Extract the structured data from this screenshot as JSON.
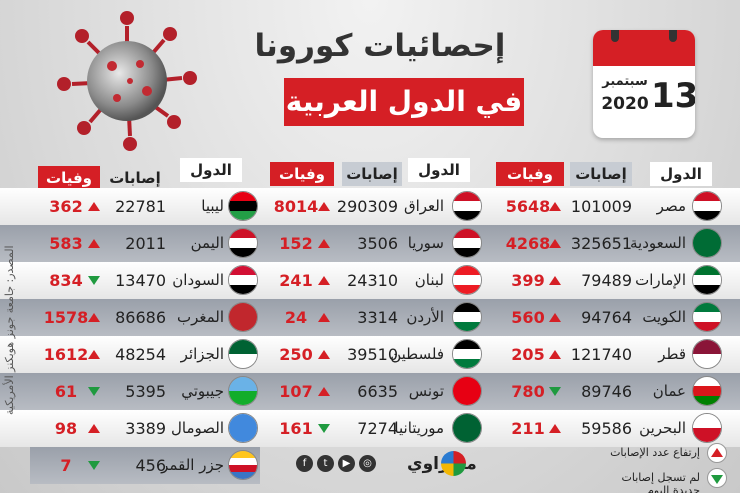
{
  "title_line1": "إحصائيات كورونا",
  "title_line2": "في الدول العربية",
  "calendar": {
    "day": "13",
    "month": "سبتمبر",
    "year": "2020"
  },
  "headers": {
    "country": "الدول",
    "cases": "إصابات",
    "deaths": "وفيات"
  },
  "colors": {
    "accent_red": "#d51f25",
    "down_green": "#1f9a3f"
  },
  "col_right": [
    {
      "country": "مصر",
      "cases": "101009",
      "deaths": "5648",
      "trend": "up"
    },
    {
      "country": "السعودية",
      "cases": "325651",
      "deaths": "4268",
      "trend": "up"
    },
    {
      "country": "الإمارات",
      "cases": "79489",
      "deaths": "399",
      "trend": "up"
    },
    {
      "country": "الكويت",
      "cases": "94764",
      "deaths": "560",
      "trend": "up"
    },
    {
      "country": "قطر",
      "cases": "121740",
      "deaths": "205",
      "trend": "up"
    },
    {
      "country": "عمان",
      "cases": "89746",
      "deaths": "780",
      "trend": "down"
    },
    {
      "country": "البحرين",
      "cases": "59586",
      "deaths": "211",
      "trend": "up"
    }
  ],
  "col_middle": [
    {
      "country": "العراق",
      "cases": "290309",
      "deaths": "8014",
      "trend": "up"
    },
    {
      "country": "سوريا",
      "cases": "3506",
      "deaths": "152",
      "trend": "up"
    },
    {
      "country": "لبنان",
      "cases": "24310",
      "deaths": "241",
      "trend": "up"
    },
    {
      "country": "الأردن",
      "cases": "3314",
      "deaths": "24",
      "trend": "up"
    },
    {
      "country": "فلسطين",
      "cases": "39510",
      "deaths": "250",
      "trend": "up"
    },
    {
      "country": "تونس",
      "cases": "6635",
      "deaths": "107",
      "trend": "up"
    },
    {
      "country": "موريتانيا",
      "cases": "7274",
      "deaths": "161",
      "trend": "down"
    }
  ],
  "col_left": [
    {
      "country": "ليبيا",
      "cases": "22781",
      "deaths": "362",
      "trend": "up"
    },
    {
      "country": "اليمن",
      "cases": "2011",
      "deaths": "583",
      "trend": "up"
    },
    {
      "country": "السودان",
      "cases": "13470",
      "deaths": "834",
      "trend": "down"
    },
    {
      "country": "المغرب",
      "cases": "86686",
      "deaths": "1578",
      "trend": "up"
    },
    {
      "country": "الجزائر",
      "cases": "48254",
      "deaths": "1612",
      "trend": "up"
    },
    {
      "country": "جيبوتي",
      "cases": "5395",
      "deaths": "61",
      "trend": "down"
    },
    {
      "country": "الصومال",
      "cases": "3389",
      "deaths": "98",
      "trend": "up"
    },
    {
      "country": "جزر القمر",
      "cases": "456",
      "deaths": "7",
      "trend": "down"
    }
  ],
  "source": "المصدر: جامعة جونز هوبكنز الأمريكية",
  "brand": "مصراوي",
  "legend": {
    "up": "إرتفاع عدد الإصابات",
    "down": "لم تسجل إصابات جديدة اليوم"
  }
}
